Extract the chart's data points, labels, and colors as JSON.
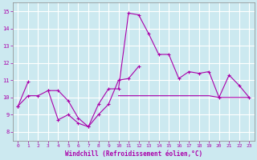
{
  "xlabel": "Windchill (Refroidissement éolien,°C)",
  "xlim": [
    -0.5,
    23.5
  ],
  "ylim": [
    7.5,
    15.5
  ],
  "yticks": [
    8,
    9,
    10,
    11,
    12,
    13,
    14,
    15
  ],
  "xticks": [
    0,
    1,
    2,
    3,
    4,
    5,
    6,
    7,
    8,
    9,
    10,
    11,
    12,
    13,
    14,
    15,
    16,
    17,
    18,
    19,
    20,
    21,
    22,
    23
  ],
  "background_color": "#cce9f0",
  "grid_color": "#ffffff",
  "line_color": "#aa00aa",
  "line1_y": [
    9.5,
    10.1,
    10.1,
    10.4,
    10.4,
    9.8,
    8.8,
    8.3,
    9.6,
    10.5,
    10.5,
    14.9,
    14.8,
    13.7,
    12.5,
    12.5,
    11.1,
    11.5,
    11.4,
    11.5,
    10.0,
    11.3,
    10.7,
    10.0
  ],
  "line2_y": [
    9.5,
    10.9,
    null,
    10.4,
    8.7,
    9.0,
    8.5,
    8.3,
    9.0,
    9.6,
    11.0,
    11.1,
    11.8,
    null,
    null,
    null,
    null,
    null,
    null,
    null,
    null,
    null,
    null,
    null
  ],
  "line3_y": [
    null,
    null,
    null,
    null,
    null,
    null,
    null,
    null,
    null,
    null,
    10.1,
    10.1,
    10.1,
    10.1,
    10.1,
    10.1,
    10.1,
    10.1,
    10.1,
    10.1,
    10.0,
    10.0,
    10.0,
    10.0
  ]
}
